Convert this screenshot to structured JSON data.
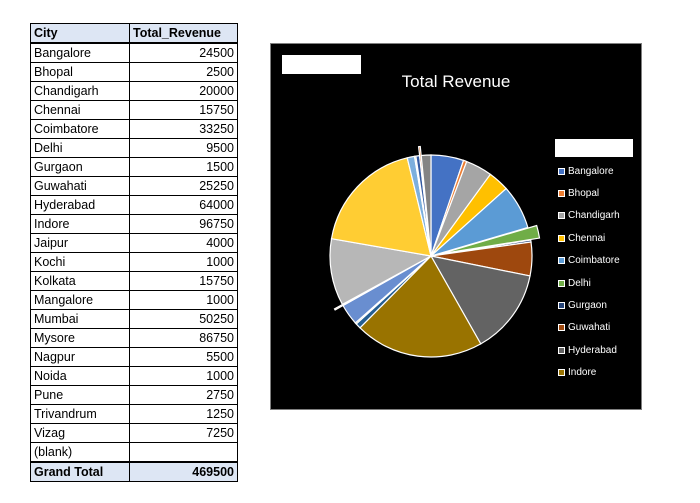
{
  "table": {
    "headers": {
      "city": "City",
      "revenue": "Total_Revenue"
    },
    "rows": [
      {
        "city": "Bangalore",
        "revenue": "24500"
      },
      {
        "city": "Bhopal",
        "revenue": "2500"
      },
      {
        "city": "Chandigarh",
        "revenue": "20000"
      },
      {
        "city": "Chennai",
        "revenue": "15750"
      },
      {
        "city": "Coimbatore",
        "revenue": "33250"
      },
      {
        "city": "Delhi",
        "revenue": "9500"
      },
      {
        "city": "Gurgaon",
        "revenue": "1500"
      },
      {
        "city": "Guwahati",
        "revenue": "25250"
      },
      {
        "city": "Hyderabad",
        "revenue": "64000"
      },
      {
        "city": "Indore",
        "revenue": "96750"
      },
      {
        "city": "Jaipur",
        "revenue": "4000"
      },
      {
        "city": "Kochi",
        "revenue": "1000"
      },
      {
        "city": "Kolkata",
        "revenue": "15750"
      },
      {
        "city": "Mangalore",
        "revenue": "1000"
      },
      {
        "city": "Mumbai",
        "revenue": "50250"
      },
      {
        "city": "Mysore",
        "revenue": "86750"
      },
      {
        "city": "Nagpur",
        "revenue": "5500"
      },
      {
        "city": "Noida",
        "revenue": "1000"
      },
      {
        "city": "Pune",
        "revenue": "2750"
      },
      {
        "city": "Trivandrum",
        "revenue": "1250"
      },
      {
        "city": "Vizag",
        "revenue": "7250"
      },
      {
        "city": "(blank)",
        "revenue": ""
      }
    ],
    "total": {
      "label": "Grand Total",
      "value": "469500"
    }
  },
  "chart_data": {
    "type": "pie",
    "title": "Total Revenue",
    "legend_position": "right",
    "categories": [
      "Bangalore",
      "Bhopal",
      "Chandigarh",
      "Chennai",
      "Coimbatore",
      "Delhi",
      "Gurgaon",
      "Guwahati",
      "Hyderabad",
      "Indore",
      "Jaipur",
      "Kochi",
      "Kolkata",
      "Mangalore",
      "Mumbai",
      "Mysore",
      "Nagpur",
      "Noida",
      "Pune",
      "Trivandrum",
      "Vizag"
    ],
    "values": [
      24500,
      2500,
      20000,
      15750,
      33250,
      9500,
      1500,
      25250,
      64000,
      96750,
      4000,
      1000,
      15750,
      1000,
      50250,
      86750,
      5500,
      1000,
      2750,
      1250,
      7250
    ],
    "colors": [
      "#4472c4",
      "#ed7d31",
      "#a5a5a5",
      "#ffc000",
      "#5b9bd5",
      "#70ad47",
      "#264478",
      "#9e480e",
      "#636363",
      "#997300",
      "#255e91",
      "#43682b",
      "#698ed0",
      "#f1975a",
      "#b7b7b7",
      "#ffcd33",
      "#7cafdd",
      "#8cc168",
      "#335aa1",
      "#d26012",
      "#848484"
    ],
    "exploded_categories": [
      "Delhi",
      "Mangalore",
      "Trivandrum"
    ],
    "legend_visible": [
      "Bangalore",
      "Bhopal",
      "Chandigarh",
      "Chennai",
      "Coimbatore",
      "Delhi",
      "Gurgaon",
      "Guwahati",
      "Hyderabad",
      "Indore"
    ]
  }
}
